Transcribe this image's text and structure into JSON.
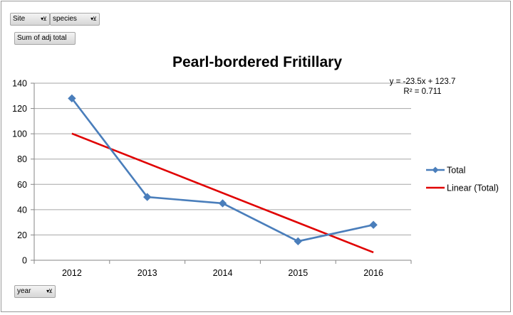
{
  "filters": {
    "site_label": "Site",
    "species_label": "species",
    "value_field_label": "Sum of adj total",
    "axis_field_label": "year"
  },
  "filter_icon": "dropdown-filter-icon",
  "colors": {
    "total": "#4a7ebb",
    "linear": "#e00000",
    "grid": "#a6a6a6"
  },
  "chart_data": {
    "type": "line",
    "title": "Pearl-bordered Fritillary",
    "categories": [
      "2012",
      "2013",
      "2014",
      "2015",
      "2016"
    ],
    "series": [
      {
        "name": "Total",
        "values": [
          128,
          50,
          45,
          15,
          28
        ],
        "marker": "diamond"
      },
      {
        "name": "Linear (Total)",
        "trendline": true,
        "slope": -23.5,
        "intercept": 123.7,
        "values": [
          100.2,
          76.7,
          53.2,
          29.7,
          6.2
        ]
      }
    ],
    "ylim": [
      0,
      140
    ],
    "yticks": [
      "0",
      "20",
      "40",
      "60",
      "80",
      "100",
      "120",
      "140"
    ],
    "grid": true,
    "legend_position": "right",
    "trendline_equation": "y = -23.5x + 123.7",
    "trendline_r2": "R² = 0.711"
  }
}
